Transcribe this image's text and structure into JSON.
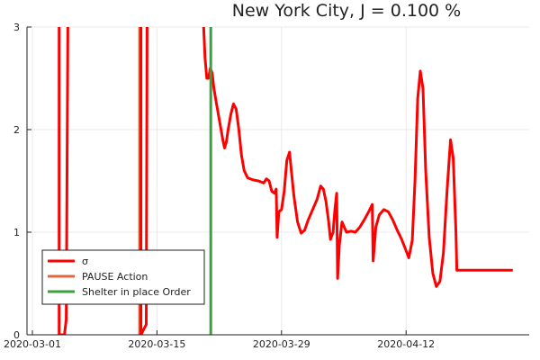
{
  "chart_data": {
    "type": "line",
    "title": "New York City, J = 0.100 %",
    "xlabel": "",
    "ylabel": "",
    "ylim": [
      0,
      3
    ],
    "grid": true,
    "legend_position": "bottom-left",
    "x_ticks": [
      {
        "label": "2020-03-01",
        "day": 0
      },
      {
        "label": "2020-03-15",
        "day": 14
      },
      {
        "label": "2020-03-29",
        "day": 28
      },
      {
        "label": "2020-04-12",
        "day": 42
      }
    ],
    "xlim_days": [
      0,
      55
    ],
    "x_start_date": "2020-03-01",
    "y_ticks": [
      0,
      1,
      2,
      3
    ],
    "series": [
      {
        "name": "σ",
        "color": "#ff0000",
        "points": [
          [
            3.0,
            3.2
          ],
          [
            3.0,
            0.0
          ],
          [
            3.6,
            0.0
          ],
          [
            3.8,
            0.15
          ],
          [
            4.0,
            3.2
          ],
          [
            12.2,
            3.2
          ],
          [
            12.2,
            0.0
          ],
          [
            12.8,
            0.1
          ],
          [
            12.9,
            3.2
          ],
          [
            19.2,
            3.1
          ],
          [
            19.4,
            2.7
          ],
          [
            19.6,
            2.5
          ],
          [
            19.8,
            2.5
          ],
          [
            20.0,
            2.6
          ],
          [
            20.2,
            2.55
          ],
          [
            20.4,
            2.4
          ],
          [
            20.6,
            2.3
          ],
          [
            20.8,
            2.2
          ],
          [
            21.0,
            2.1
          ],
          [
            21.2,
            2.0
          ],
          [
            21.4,
            1.9
          ],
          [
            21.6,
            1.82
          ],
          [
            21.8,
            1.88
          ],
          [
            22.0,
            2.0
          ],
          [
            22.3,
            2.15
          ],
          [
            22.6,
            2.25
          ],
          [
            22.9,
            2.2
          ],
          [
            23.2,
            2.0
          ],
          [
            23.5,
            1.75
          ],
          [
            23.8,
            1.6
          ],
          [
            24.2,
            1.53
          ],
          [
            24.8,
            1.51
          ],
          [
            25.4,
            1.5
          ],
          [
            26.0,
            1.48
          ],
          [
            26.3,
            1.52
          ],
          [
            26.6,
            1.5
          ],
          [
            26.9,
            1.4
          ],
          [
            27.2,
            1.38
          ],
          [
            27.4,
            1.42
          ],
          [
            27.5,
            0.95
          ],
          [
            27.7,
            1.2
          ],
          [
            28.0,
            1.22
          ],
          [
            28.3,
            1.4
          ],
          [
            28.6,
            1.7
          ],
          [
            28.9,
            1.78
          ],
          [
            29.1,
            1.6
          ],
          [
            29.4,
            1.35
          ],
          [
            29.8,
            1.1
          ],
          [
            30.2,
            0.99
          ],
          [
            30.6,
            1.02
          ],
          [
            31.0,
            1.12
          ],
          [
            31.5,
            1.22
          ],
          [
            32.0,
            1.32
          ],
          [
            32.4,
            1.45
          ],
          [
            32.7,
            1.42
          ],
          [
            33.0,
            1.3
          ],
          [
            33.3,
            1.1
          ],
          [
            33.5,
            0.93
          ],
          [
            33.8,
            1.0
          ],
          [
            34.0,
            1.22
          ],
          [
            34.2,
            1.38
          ],
          [
            34.3,
            0.55
          ],
          [
            34.5,
            0.88
          ],
          [
            34.8,
            1.1
          ],
          [
            35.0,
            1.06
          ],
          [
            35.3,
            1.0
          ],
          [
            35.8,
            1.01
          ],
          [
            36.3,
            1.0
          ],
          [
            36.8,
            1.05
          ],
          [
            37.3,
            1.12
          ],
          [
            37.8,
            1.2
          ],
          [
            38.2,
            1.27
          ],
          [
            38.3,
            0.72
          ],
          [
            38.6,
            1.05
          ],
          [
            39.0,
            1.17
          ],
          [
            39.5,
            1.22
          ],
          [
            40.0,
            1.2
          ],
          [
            40.5,
            1.12
          ],
          [
            41.0,
            1.02
          ],
          [
            41.5,
            0.93
          ],
          [
            42.0,
            0.82
          ],
          [
            42.3,
            0.75
          ],
          [
            42.7,
            0.92
          ],
          [
            43.0,
            1.5
          ],
          [
            43.3,
            2.3
          ],
          [
            43.6,
            2.57
          ],
          [
            43.9,
            2.4
          ],
          [
            44.2,
            1.6
          ],
          [
            44.6,
            0.95
          ],
          [
            45.0,
            0.6
          ],
          [
            45.4,
            0.47
          ],
          [
            45.8,
            0.52
          ],
          [
            46.2,
            0.8
          ],
          [
            46.6,
            1.4
          ],
          [
            47.0,
            1.9
          ],
          [
            47.3,
            1.72
          ],
          [
            47.6,
            1.0
          ],
          [
            47.7,
            0.63
          ],
          [
            48.5,
            0.63
          ],
          [
            50.0,
            0.63
          ],
          [
            52.0,
            0.63
          ],
          [
            54.0,
            0.63
          ]
        ]
      },
      {
        "name": "PAUSE Action",
        "color": "#e0663f",
        "points": [
          [
            12.05,
            0
          ],
          [
            12.05,
            3.2
          ]
        ]
      },
      {
        "name": "Shelter in place Order",
        "color": "#3aa040",
        "points": [
          [
            20.05,
            0
          ],
          [
            20.05,
            3.2
          ]
        ]
      }
    ]
  }
}
